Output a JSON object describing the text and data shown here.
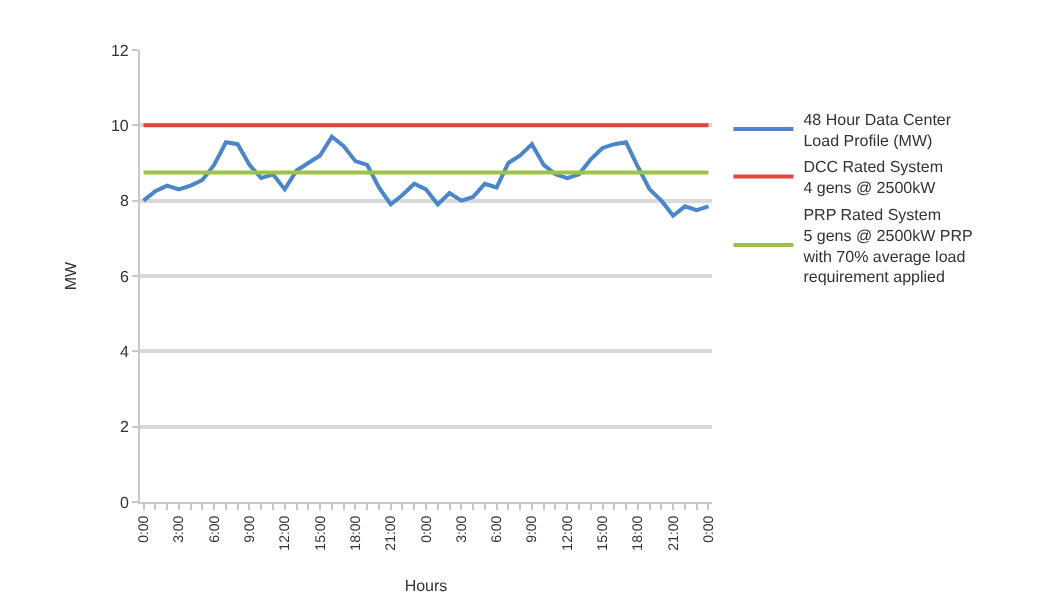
{
  "chart_data": {
    "type": "line",
    "xlabel": "Hours",
    "ylabel": "MW",
    "categories": [
      "0:00",
      null,
      null,
      "3:00",
      null,
      null,
      "6:00",
      null,
      null,
      "9:00",
      null,
      null,
      "12:00",
      null,
      null,
      "15:00",
      null,
      null,
      "18:00",
      null,
      null,
      "21:00",
      null,
      null,
      "0:00",
      null,
      null,
      "3:00",
      null,
      null,
      "6:00",
      null,
      null,
      "9:00",
      null,
      null,
      "12:00",
      null,
      null,
      "15:00",
      null,
      null,
      "18:00",
      null,
      null,
      "21:00",
      null,
      null,
      "0:00"
    ],
    "series": [
      {
        "name": "48 Hour Data Center\nLoad Profile (MW)",
        "color": "#4a86c8",
        "values": [
          8.0,
          8.25,
          8.4,
          8.3,
          8.4,
          8.55,
          8.95,
          9.55,
          9.5,
          8.95,
          8.6,
          8.7,
          8.3,
          8.8,
          9.0,
          9.2,
          9.7,
          9.45,
          9.05,
          8.95,
          8.35,
          7.9,
          8.15,
          8.45,
          8.3,
          7.9,
          8.2,
          8.0,
          8.1,
          8.45,
          8.35,
          9.0,
          9.2,
          9.5,
          8.95,
          8.7,
          8.6,
          8.7,
          9.1,
          9.4,
          9.5,
          9.55,
          8.9,
          8.3,
          8.0,
          7.6,
          7.85,
          7.75,
          7.85
        ]
      },
      {
        "name": "DCC Rated System\n4 gens @ 2500kW",
        "color": "#e0463c",
        "values": [
          10,
          10,
          10,
          10,
          10,
          10,
          10,
          10,
          10,
          10,
          10,
          10,
          10,
          10,
          10,
          10,
          10,
          10,
          10,
          10,
          10,
          10,
          10,
          10,
          10,
          10,
          10,
          10,
          10,
          10,
          10,
          10,
          10,
          10,
          10,
          10,
          10,
          10,
          10,
          10,
          10,
          10,
          10,
          10,
          10,
          10,
          10,
          10,
          10
        ]
      },
      {
        "name": "PRP Rated System\n5 gens @ 2500kW PRP\nwith 70% average load\nrequirement applied",
        "color": "#9bc34a",
        "values": [
          8.75,
          8.75,
          8.75,
          8.75,
          8.75,
          8.75,
          8.75,
          8.75,
          8.75,
          8.75,
          8.75,
          8.75,
          8.75,
          8.75,
          8.75,
          8.75,
          8.75,
          8.75,
          8.75,
          8.75,
          8.75,
          8.75,
          8.75,
          8.75,
          8.75,
          8.75,
          8.75,
          8.75,
          8.75,
          8.75,
          8.75,
          8.75,
          8.75,
          8.75,
          8.75,
          8.75,
          8.75,
          8.75,
          8.75,
          8.75,
          8.75,
          8.75,
          8.75,
          8.75,
          8.75,
          8.75,
          8.75,
          8.75,
          8.75
        ]
      }
    ],
    "ylim": [
      0,
      12
    ],
    "yticks": [
      0,
      2,
      4,
      6,
      8,
      10,
      12
    ],
    "grid": "y",
    "legend": "right",
    "marker": "none",
    "line_style": "solid"
  }
}
